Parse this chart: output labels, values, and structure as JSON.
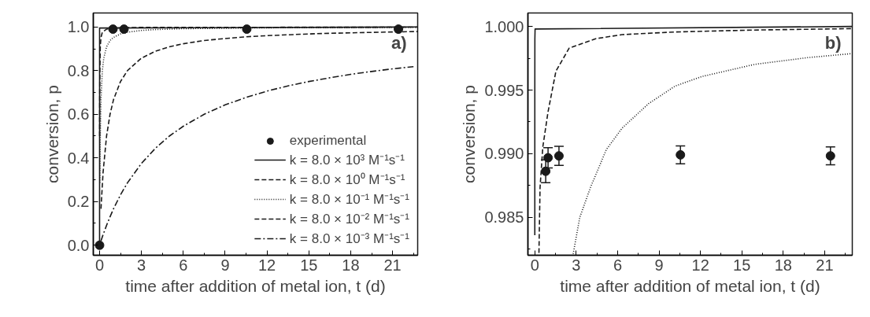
{
  "chart_data": [
    {
      "type": "line",
      "xlabel": "time after addition of metal ion, t (d)",
      "ylabel": "conversion, p",
      "annotations": [
        "a)"
      ],
      "xlim": [
        -0.45,
        22.8
      ],
      "ylim": [
        -0.046,
        1.064
      ],
      "xticks": [
        0,
        {
          "value": 1.5,
          "label": null
        },
        3,
        {
          "value": 4.5,
          "label": null
        },
        6,
        {
          "value": 7.5,
          "label": null
        },
        9,
        {
          "value": 10.5,
          "label": null
        },
        12,
        {
          "value": 13.5,
          "label": null
        },
        15,
        {
          "value": 16.5,
          "label": null
        },
        18,
        {
          "value": 19.5,
          "label": null
        },
        21,
        {
          "value": 22.5,
          "label": null
        }
      ],
      "yticks": [
        {
          "value": 0,
          "label": "0.0"
        },
        {
          "value": 0.1,
          "label": null
        },
        0.2,
        {
          "value": 0.3,
          "label": null
        },
        0.4,
        {
          "value": 0.5,
          "label": null
        },
        0.6,
        {
          "value": 0.7,
          "label": null
        },
        0.8,
        {
          "value": 0.9,
          "label": null
        },
        {
          "value": 1,
          "label": "1.0"
        }
      ],
      "grid": false,
      "legend": "bottom right",
      "series": [
        {
          "name": "experimental",
          "type": "scatter",
          "marker": "circle",
          "color": "#1a1a1a",
          "x": [
            0,
            0.79,
            0.96,
            1.75,
            10.55,
            21.42
          ],
          "values": [
            0,
            null,
            0.99,
            0.99,
            0.99,
            0.99
          ]
        },
        {
          "name": "k = 8.0 × 10³ M⁻¹s⁻¹",
          "line_style": "solid",
          "color": "#1a1a1a",
          "x": [
            0,
            0.001,
            22.8
          ],
          "values": [
            0,
            0.995,
            1.0
          ]
        },
        {
          "name": "k = 8.0 × 10⁰ M⁻¹s⁻¹",
          "line_style": "dashed",
          "color": "#1a1a1a",
          "x": [
            0.005,
            0.01,
            0.02,
            0.05,
            0.1,
            0.2,
            0.5,
            1,
            3,
            22.8
          ],
          "values": [
            0.5,
            0.667,
            0.8,
            0.909,
            0.952,
            0.976,
            0.99,
            0.995,
            0.998,
            0.999
          ]
        },
        {
          "name": "k = 8.0 × 10⁻¹ M⁻¹s⁻¹",
          "line_style": "dotted",
          "color": "#1a1a1a",
          "x": [
            0.02,
            0.05,
            0.1,
            0.2,
            0.3,
            0.5,
            0.75,
            1,
            1.5,
            2,
            3,
            4,
            6,
            9,
            12,
            15,
            18,
            21,
            22.8
          ],
          "values": [
            0.286,
            0.5,
            0.667,
            0.8,
            0.857,
            0.909,
            0.938,
            0.952,
            0.968,
            0.976,
            0.984,
            0.988,
            0.992,
            0.994,
            0.996,
            0.997,
            0.997,
            0.998,
            0.998
          ]
        },
        {
          "name": "k = 8.0 × 10⁻² M⁻¹s⁻¹",
          "line_style": "dashed",
          "color": "#1a1a1a",
          "x": [
            0.1,
            0.25,
            0.5,
            0.75,
            1,
            1.5,
            2,
            3,
            4,
            5,
            6,
            7.5,
            9,
            10.5,
            12,
            13.5,
            15,
            16.5,
            18,
            19.5,
            21,
            22.8
          ],
          "values": [
            0.167,
            0.333,
            0.5,
            0.6,
            0.667,
            0.75,
            0.8,
            0.857,
            0.889,
            0.909,
            0.923,
            0.938,
            0.947,
            0.955,
            0.96,
            0.964,
            0.968,
            0.971,
            0.973,
            0.975,
            0.977,
            0.979
          ]
        },
        {
          "name": "k = 8.0 × 10⁻³ M⁻¹s⁻¹",
          "line_style": "dashdot",
          "color": "#1a1a1a",
          "x": [
            0.1,
            0.25,
            0.5,
            0.75,
            1,
            1.5,
            2,
            3,
            4,
            5,
            6,
            7.5,
            9,
            10.5,
            12,
            13.5,
            15,
            16.5,
            18,
            19.5,
            21,
            22.5
          ],
          "values": [
            0.02,
            0.048,
            0.091,
            0.13,
            0.167,
            0.231,
            0.286,
            0.375,
            0.444,
            0.5,
            0.545,
            0.6,
            0.643,
            0.677,
            0.706,
            0.73,
            0.75,
            0.767,
            0.783,
            0.796,
            0.808,
            0.818
          ]
        }
      ]
    },
    {
      "type": "line",
      "xlabel": "time after addition of metal ion, t (d)",
      "ylabel": "conversion, p",
      "annotations": [
        "b)"
      ],
      "xlim": [
        -0.5,
        23
      ],
      "ylim": [
        0.98202,
        1.00106
      ],
      "xticks": [
        0,
        {
          "value": 1.5,
          "label": null
        },
        3,
        {
          "value": 4.5,
          "label": null
        },
        6,
        {
          "value": 7.5,
          "label": null
        },
        9,
        {
          "value": 10.5,
          "label": null
        },
        12,
        {
          "value": 13.5,
          "label": null
        },
        15,
        {
          "value": 16.5,
          "label": null
        },
        18,
        {
          "value": 19.5,
          "label": null
        },
        21,
        {
          "value": 22.5,
          "label": null
        }
      ],
      "yticks": [
        {
          "value": 0.9825,
          "label": null
        },
        0.985,
        {
          "value": 0.9875,
          "label": null
        },
        {
          "value": 0.99,
          "label": "0.990"
        },
        {
          "value": 0.9925,
          "label": null
        },
        0.995,
        {
          "value": 0.9975,
          "label": null
        },
        {
          "value": 1,
          "label": "1.000"
        }
      ],
      "grid": false,
      "legend": false,
      "series": [
        {
          "type": "scatter",
          "marker": "circle",
          "color": "#1a1a1a",
          "x": [
            0.79,
            0.96,
            1.75,
            10.55,
            21.42
          ],
          "values": [
            0.98862,
            0.98968,
            0.98983,
            0.98991,
            0.98983
          ],
          "errors": [
            0.0009,
            0.0008,
            0.00075,
            0.0007,
            0.0007
          ]
        },
        {
          "line_style": "solid",
          "color": "#1a1a1a",
          "x": [
            0.0003,
            0.001,
            0.005,
            0.02,
            23
          ],
          "values": [
            0.9836,
            0.995,
            0.999,
            0.9998,
            1.0
          ]
        },
        {
          "line_style": "dashed",
          "color": "#1a1a1a",
          "x": [
            0.3,
            0.38,
            0.58,
            0.96,
            1.53,
            2.49,
            4.41,
            6.33,
            10.2,
            15.9,
            23
          ],
          "values": [
            0.9822,
            0.98734,
            0.99053,
            0.9933,
            0.99649,
            0.9983,
            0.99904,
            0.99936,
            0.99957,
            0.99972,
            0.99983
          ]
        },
        {
          "line_style": "dotted",
          "color": "#1a1a1a",
          "x": [
            2.78,
            3.26,
            4.03,
            5.18,
            6.33,
            8.25,
            10.17,
            12.08,
            15.92,
            19.75,
            23
          ],
          "values": [
            0.98213,
            0.985,
            0.98734,
            0.99032,
            0.99202,
            0.99394,
            0.99532,
            0.99606,
            0.99702,
            0.99755,
            0.99787
          ]
        }
      ]
    }
  ]
}
